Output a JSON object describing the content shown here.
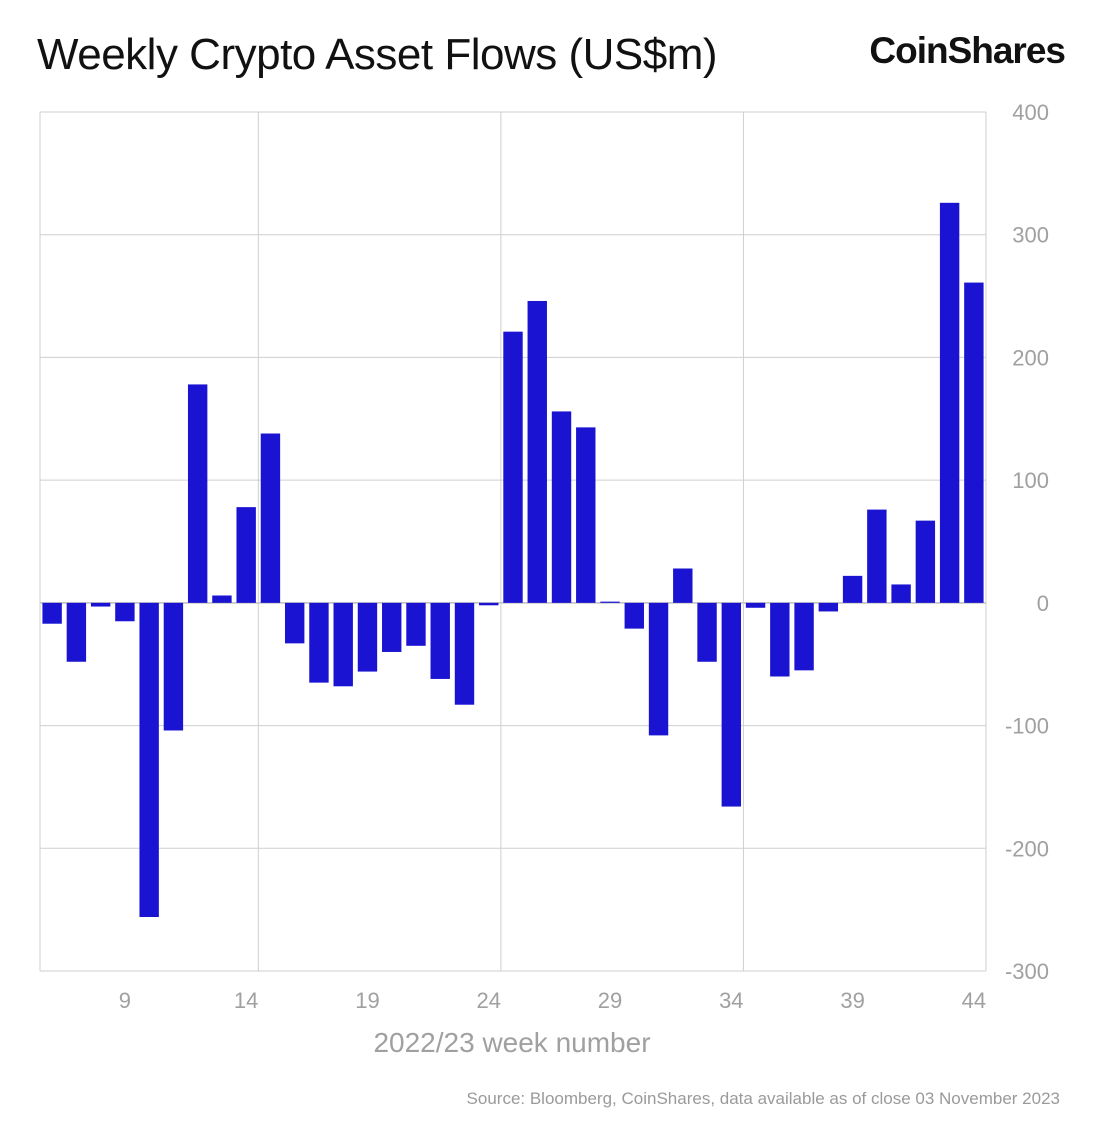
{
  "header": {
    "title": "Weekly Crypto Asset Flows (US$m)",
    "brand": "CoinShares"
  },
  "footer": {
    "source": "Source: Bloomberg, CoinShares, data available as of close 03 November 2023"
  },
  "chart_data": {
    "type": "bar",
    "title": "Weekly Crypto Asset Flows (US$m)",
    "xlabel": "2022/23 week number",
    "ylabel": "",
    "ylim": [
      -300,
      400
    ],
    "yticks": [
      400,
      300,
      200,
      100,
      0,
      -100,
      -200,
      -300
    ],
    "xticks": [
      9,
      14,
      19,
      24,
      29,
      34,
      39,
      44
    ],
    "y_axis_side": "right",
    "grid": true,
    "bar_color": "#1a14d2",
    "weeks": [
      6,
      7,
      8,
      9,
      10,
      11,
      12,
      13,
      14,
      15,
      16,
      17,
      18,
      19,
      20,
      21,
      22,
      23,
      24,
      25,
      26,
      27,
      28,
      29,
      30,
      31,
      32,
      33,
      34,
      35,
      36,
      37,
      38,
      39,
      40,
      41,
      42,
      43,
      44
    ],
    "values": [
      -17,
      -48,
      -3,
      -15,
      -256,
      -104,
      178,
      6,
      78,
      138,
      -33,
      -65,
      -68,
      -56,
      -40,
      -35,
      -62,
      -83,
      -2,
      221,
      246,
      156,
      143,
      1,
      -21,
      -108,
      28,
      -48,
      -166,
      -4,
      -60,
      -55,
      -7,
      22,
      76,
      15,
      67,
      326,
      261
    ]
  }
}
